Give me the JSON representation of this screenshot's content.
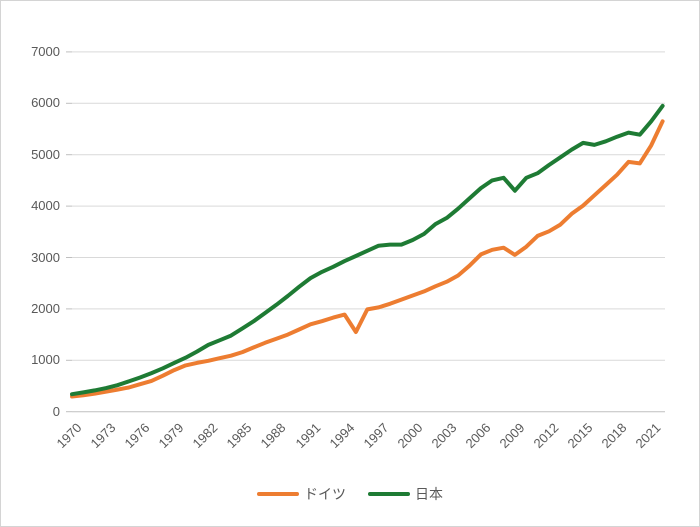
{
  "chart_data": {
    "type": "line",
    "title": "",
    "xlabel": "",
    "ylabel": "",
    "grid": true,
    "legend_position": "bottom",
    "ylim": [
      0,
      7000
    ],
    "yticks": [
      0,
      1000,
      2000,
      3000,
      4000,
      5000,
      6000,
      7000
    ],
    "xticks": [
      1970,
      1973,
      1976,
      1979,
      1982,
      1985,
      1988,
      1991,
      1994,
      1997,
      2000,
      2003,
      2006,
      2009,
      2012,
      2015,
      2018,
      2021
    ],
    "x": [
      1970,
      1971,
      1972,
      1973,
      1974,
      1975,
      1976,
      1977,
      1978,
      1979,
      1980,
      1981,
      1982,
      1983,
      1984,
      1985,
      1986,
      1987,
      1988,
      1989,
      1990,
      1991,
      1992,
      1993,
      1994,
      1995,
      1996,
      1997,
      1998,
      1999,
      2000,
      2001,
      2002,
      2003,
      2004,
      2005,
      2006,
      2007,
      2008,
      2009,
      2010,
      2011,
      2012,
      2013,
      2014,
      2015,
      2016,
      2017,
      2018,
      2019,
      2020,
      2021,
      2022
    ],
    "series": [
      {
        "id": "germany",
        "name": "ドイツ",
        "color": "#ED7D31",
        "values": [
          295,
          320,
          350,
          390,
          430,
          470,
          535,
          600,
          700,
          810,
          900,
          950,
          990,
          1040,
          1090,
          1160,
          1250,
          1340,
          1420,
          1500,
          1600,
          1700,
          1760,
          1830,
          1890,
          1550,
          1990,
          2030,
          2100,
          2180,
          2260,
          2340,
          2440,
          2530,
          2650,
          2840,
          3060,
          3150,
          3190,
          3050,
          3210,
          3420,
          3510,
          3640,
          3850,
          4010,
          4210,
          4410,
          4610,
          4860,
          4830,
          5180,
          5650
        ]
      },
      {
        "id": "japan",
        "name": "日本",
        "color": "#1E7B34",
        "values": [
          340,
          375,
          415,
          460,
          515,
          590,
          665,
          750,
          845,
          950,
          1050,
          1170,
          1300,
          1390,
          1480,
          1620,
          1760,
          1920,
          2080,
          2250,
          2430,
          2600,
          2720,
          2820,
          2930,
          3030,
          3130,
          3230,
          3250,
          3250,
          3340,
          3460,
          3650,
          3770,
          3950,
          4150,
          4350,
          4500,
          4550,
          4300,
          4550,
          4640,
          4800,
          4950,
          5100,
          5230,
          5190,
          5260,
          5350,
          5430,
          5390,
          5650,
          5950
        ]
      }
    ],
    "colors": {
      "gridline": "#D9D9D9",
      "axis_line": "#BFBFBF",
      "tick_label": "#595959"
    }
  }
}
